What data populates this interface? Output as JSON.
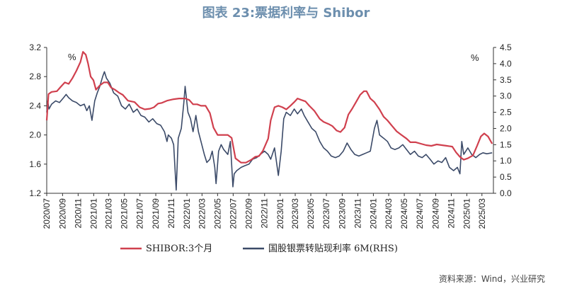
{
  "title": "图表 23:票据利率与 Shibor",
  "source": "资料来源：Wind，兴业研究",
  "chart_data": {
    "type": "line",
    "left_axis": {
      "unit": "%",
      "min": 1.2,
      "max": 3.2,
      "ticks": [
        "1.2",
        "1.6",
        "2.0",
        "2.4",
        "2.8",
        "3.2"
      ]
    },
    "right_axis": {
      "unit": "%",
      "min": 0.0,
      "max": 4.5,
      "ticks": [
        "0.0",
        "0.5",
        "1.0",
        "1.5",
        "2.0",
        "2.5",
        "3.0",
        "3.5",
        "4.0",
        "4.5"
      ]
    },
    "x_range": [
      "2020-07-01",
      "2025-04-15"
    ],
    "x_ticks": [
      "2020/07",
      "2020/09",
      "2020/11",
      "2021/01",
      "2021/03",
      "2021/05",
      "2021/07",
      "2021/09",
      "2021/11",
      "2022/01",
      "2022/03",
      "2022/05",
      "2022/07",
      "2022/09",
      "2022/11",
      "2023/01",
      "2023/03",
      "2023/05",
      "2023/07",
      "2023/09",
      "2023/11",
      "2024/01",
      "2024/03",
      "2024/05",
      "2024/07",
      "2024/09",
      "2024/11",
      "2025/01",
      "2025/03"
    ],
    "series": [
      {
        "name": "SHIBOR:3个月",
        "axis": "left",
        "color": "#d0404e",
        "points": [
          [
            "2020-07-01",
            2.2
          ],
          [
            "2020-07-08",
            2.56
          ],
          [
            "2020-07-20",
            2.59
          ],
          [
            "2020-08-10",
            2.6
          ],
          [
            "2020-08-25",
            2.66
          ],
          [
            "2020-09-10",
            2.72
          ],
          [
            "2020-09-25",
            2.7
          ],
          [
            "2020-10-10",
            2.78
          ],
          [
            "2020-10-25",
            2.88
          ],
          [
            "2020-11-10",
            3.0
          ],
          [
            "2020-11-20",
            3.14
          ],
          [
            "2020-12-01",
            3.1
          ],
          [
            "2020-12-10",
            2.98
          ],
          [
            "2020-12-20",
            2.8
          ],
          [
            "2020-12-31",
            2.75
          ],
          [
            "2021-01-10",
            2.62
          ],
          [
            "2021-01-25",
            2.68
          ],
          [
            "2021-02-10",
            2.72
          ],
          [
            "2021-02-25",
            2.72
          ],
          [
            "2021-03-10",
            2.65
          ],
          [
            "2021-03-25",
            2.62
          ],
          [
            "2021-04-10",
            2.58
          ],
          [
            "2021-04-25",
            2.55
          ],
          [
            "2021-05-15",
            2.47
          ],
          [
            "2021-06-10",
            2.45
          ],
          [
            "2021-06-30",
            2.38
          ],
          [
            "2021-07-20",
            2.35
          ],
          [
            "2021-08-10",
            2.36
          ],
          [
            "2021-08-25",
            2.38
          ],
          [
            "2021-09-10",
            2.43
          ],
          [
            "2021-09-25",
            2.44
          ],
          [
            "2021-10-15",
            2.47
          ],
          [
            "2021-11-10",
            2.49
          ],
          [
            "2021-12-01",
            2.5
          ],
          [
            "2021-12-25",
            2.5
          ],
          [
            "2022-01-10",
            2.48
          ],
          [
            "2022-01-25",
            2.42
          ],
          [
            "2022-02-10",
            2.42
          ],
          [
            "2022-02-25",
            2.4
          ],
          [
            "2022-03-15",
            2.4
          ],
          [
            "2022-04-01",
            2.3
          ],
          [
            "2022-04-15",
            2.1
          ],
          [
            "2022-05-01",
            2.0
          ],
          [
            "2022-05-20",
            2.0
          ],
          [
            "2022-06-10",
            2.0
          ],
          [
            "2022-06-25",
            1.96
          ],
          [
            "2022-07-10",
            1.68
          ],
          [
            "2022-08-01",
            1.62
          ],
          [
            "2022-08-20",
            1.62
          ],
          [
            "2022-09-10",
            1.66
          ],
          [
            "2022-09-25",
            1.7
          ],
          [
            "2022-10-10",
            1.71
          ],
          [
            "2022-10-25",
            1.78
          ],
          [
            "2022-11-15",
            1.95
          ],
          [
            "2022-11-25",
            2.2
          ],
          [
            "2022-12-10",
            2.38
          ],
          [
            "2022-12-25",
            2.4
          ],
          [
            "2023-01-10",
            2.38
          ],
          [
            "2023-01-25",
            2.35
          ],
          [
            "2023-02-10",
            2.4
          ],
          [
            "2023-02-25",
            2.45
          ],
          [
            "2023-03-10",
            2.5
          ],
          [
            "2023-03-25",
            2.48
          ],
          [
            "2023-04-10",
            2.46
          ],
          [
            "2023-04-25",
            2.4
          ],
          [
            "2023-05-15",
            2.33
          ],
          [
            "2023-06-05",
            2.22
          ],
          [
            "2023-06-20",
            2.18
          ],
          [
            "2023-07-10",
            2.15
          ],
          [
            "2023-07-25",
            2.12
          ],
          [
            "2023-08-10",
            2.06
          ],
          [
            "2023-08-25",
            2.04
          ],
          [
            "2023-09-10",
            2.1
          ],
          [
            "2023-09-25",
            2.28
          ],
          [
            "2023-10-10",
            2.36
          ],
          [
            "2023-10-25",
            2.45
          ],
          [
            "2023-11-10",
            2.55
          ],
          [
            "2023-11-25",
            2.6
          ],
          [
            "2023-12-05",
            2.6
          ],
          [
            "2023-12-20",
            2.5
          ],
          [
            "2024-01-05",
            2.45
          ],
          [
            "2024-01-25",
            2.35
          ],
          [
            "2024-02-10",
            2.25
          ],
          [
            "2024-02-25",
            2.2
          ],
          [
            "2024-03-15",
            2.12
          ],
          [
            "2024-04-01",
            2.05
          ],
          [
            "2024-04-20",
            2.0
          ],
          [
            "2024-05-10",
            1.95
          ],
          [
            "2024-05-25",
            1.9
          ],
          [
            "2024-06-15",
            1.9
          ],
          [
            "2024-07-05",
            1.88
          ],
          [
            "2024-07-25",
            1.86
          ],
          [
            "2024-08-15",
            1.85
          ],
          [
            "2024-09-05",
            1.87
          ],
          [
            "2024-09-25",
            1.86
          ],
          [
            "2024-10-15",
            1.85
          ],
          [
            "2024-11-05",
            1.84
          ],
          [
            "2024-11-20",
            1.76
          ],
          [
            "2024-12-05",
            1.7
          ],
          [
            "2024-12-20",
            1.66
          ],
          [
            "2025-01-05",
            1.68
          ],
          [
            "2025-01-25",
            1.72
          ],
          [
            "2025-02-10",
            1.85
          ],
          [
            "2025-02-25",
            1.98
          ],
          [
            "2025-03-10",
            2.02
          ],
          [
            "2025-03-25",
            1.98
          ],
          [
            "2025-04-10",
            1.88
          ]
        ]
      },
      {
        "name": "国股银票转贴现利率 6M(RHS)",
        "axis": "right",
        "color": "#3b4a68",
        "points": [
          [
            "2020-07-01",
            2.5
          ],
          [
            "2020-07-05",
            2.85
          ],
          [
            "2020-07-10",
            2.6
          ],
          [
            "2020-07-20",
            2.75
          ],
          [
            "2020-08-05",
            2.85
          ],
          [
            "2020-08-20",
            2.8
          ],
          [
            "2020-09-05",
            2.95
          ],
          [
            "2020-09-15",
            3.05
          ],
          [
            "2020-09-25",
            2.95
          ],
          [
            "2020-10-10",
            2.85
          ],
          [
            "2020-10-25",
            2.8
          ],
          [
            "2020-11-10",
            2.7
          ],
          [
            "2020-11-25",
            2.75
          ],
          [
            "2020-12-05",
            2.55
          ],
          [
            "2020-12-15",
            2.7
          ],
          [
            "2020-12-25",
            2.25
          ],
          [
            "2021-01-05",
            2.85
          ],
          [
            "2021-01-15",
            3.1
          ],
          [
            "2021-01-25",
            3.3
          ],
          [
            "2021-02-05",
            3.6
          ],
          [
            "2021-02-12",
            3.75
          ],
          [
            "2021-02-20",
            3.55
          ],
          [
            "2021-03-05",
            3.4
          ],
          [
            "2021-03-20",
            3.1
          ],
          [
            "2021-04-05",
            3.0
          ],
          [
            "2021-04-20",
            2.7
          ],
          [
            "2021-05-05",
            2.6
          ],
          [
            "2021-05-20",
            2.75
          ],
          [
            "2021-06-05",
            2.5
          ],
          [
            "2021-06-20",
            2.6
          ],
          [
            "2021-07-05",
            2.4
          ],
          [
            "2021-07-20",
            2.35
          ],
          [
            "2021-08-05",
            2.2
          ],
          [
            "2021-08-20",
            2.3
          ],
          [
            "2021-09-05",
            2.15
          ],
          [
            "2021-09-20",
            2.1
          ],
          [
            "2021-10-05",
            1.9
          ],
          [
            "2021-10-15",
            1.6
          ],
          [
            "2021-10-20",
            1.8
          ],
          [
            "2021-11-01",
            1.7
          ],
          [
            "2021-11-10",
            1.5
          ],
          [
            "2021-11-20",
            0.1
          ],
          [
            "2021-11-28",
            1.7
          ],
          [
            "2021-12-10",
            2.0
          ],
          [
            "2021-12-20",
            2.8
          ],
          [
            "2021-12-25",
            3.3
          ],
          [
            "2022-01-05",
            2.5
          ],
          [
            "2022-01-15",
            2.3
          ],
          [
            "2022-01-25",
            1.9
          ],
          [
            "2022-02-05",
            2.4
          ],
          [
            "2022-02-15",
            1.9
          ],
          [
            "2022-02-25",
            1.6
          ],
          [
            "2022-03-10",
            1.2
          ],
          [
            "2022-03-20",
            0.95
          ],
          [
            "2022-04-01",
            1.05
          ],
          [
            "2022-04-10",
            1.3
          ],
          [
            "2022-04-20",
            0.8
          ],
          [
            "2022-04-25",
            0.3
          ],
          [
            "2022-05-05",
            1.3
          ],
          [
            "2022-05-15",
            1.5
          ],
          [
            "2022-05-25",
            1.35
          ],
          [
            "2022-06-10",
            1.2
          ],
          [
            "2022-06-20",
            1.6
          ],
          [
            "2022-06-30",
            0.2
          ],
          [
            "2022-07-05",
            0.6
          ],
          [
            "2022-07-15",
            0.7
          ],
          [
            "2022-08-01",
            0.8
          ],
          [
            "2022-08-15",
            0.85
          ],
          [
            "2022-09-01",
            0.9
          ],
          [
            "2022-09-15",
            1.05
          ],
          [
            "2022-10-01",
            1.1
          ],
          [
            "2022-10-15",
            1.2
          ],
          [
            "2022-11-01",
            1.3
          ],
          [
            "2022-11-15",
            1.2
          ],
          [
            "2022-11-25",
            1.05
          ],
          [
            "2022-12-10",
            1.4
          ],
          [
            "2022-12-25",
            0.55
          ],
          [
            "2023-01-05",
            1.3
          ],
          [
            "2023-01-15",
            2.3
          ],
          [
            "2023-01-25",
            2.5
          ],
          [
            "2023-02-10",
            2.4
          ],
          [
            "2023-02-25",
            2.6
          ],
          [
            "2023-03-10",
            2.45
          ],
          [
            "2023-03-25",
            2.6
          ],
          [
            "2023-04-05",
            2.4
          ],
          [
            "2023-04-20",
            2.2
          ],
          [
            "2023-05-05",
            2.0
          ],
          [
            "2023-05-20",
            1.9
          ],
          [
            "2023-06-05",
            1.6
          ],
          [
            "2023-06-20",
            1.4
          ],
          [
            "2023-07-05",
            1.3
          ],
          [
            "2023-07-20",
            1.15
          ],
          [
            "2023-08-05",
            1.1
          ],
          [
            "2023-08-20",
            1.15
          ],
          [
            "2023-09-05",
            1.3
          ],
          [
            "2023-09-20",
            1.55
          ],
          [
            "2023-10-05",
            1.35
          ],
          [
            "2023-10-20",
            1.2
          ],
          [
            "2023-11-05",
            1.15
          ],
          [
            "2023-11-20",
            1.2
          ],
          [
            "2023-12-05",
            1.25
          ],
          [
            "2023-12-20",
            1.3
          ],
          [
            "2024-01-05",
            2.0
          ],
          [
            "2024-01-15",
            2.25
          ],
          [
            "2024-01-25",
            1.8
          ],
          [
            "2024-02-10",
            1.7
          ],
          [
            "2024-02-25",
            1.6
          ],
          [
            "2024-03-10",
            1.4
          ],
          [
            "2024-03-25",
            1.35
          ],
          [
            "2024-04-10",
            1.4
          ],
          [
            "2024-04-25",
            1.5
          ],
          [
            "2024-05-10",
            1.35
          ],
          [
            "2024-05-25",
            1.2
          ],
          [
            "2024-06-10",
            1.3
          ],
          [
            "2024-06-25",
            1.15
          ],
          [
            "2024-07-10",
            1.1
          ],
          [
            "2024-07-25",
            1.2
          ],
          [
            "2024-08-10",
            1.05
          ],
          [
            "2024-08-25",
            0.9
          ],
          [
            "2024-09-10",
            1.0
          ],
          [
            "2024-09-25",
            0.95
          ],
          [
            "2024-10-10",
            1.1
          ],
          [
            "2024-10-25",
            0.8
          ],
          [
            "2024-11-10",
            0.7
          ],
          [
            "2024-11-25",
            0.8
          ],
          [
            "2024-12-05",
            0.6
          ],
          [
            "2024-12-12",
            1.6
          ],
          [
            "2024-12-20",
            1.2
          ],
          [
            "2025-01-05",
            1.4
          ],
          [
            "2025-01-20",
            1.2
          ],
          [
            "2025-02-05",
            1.1
          ],
          [
            "2025-02-20",
            1.2
          ],
          [
            "2025-03-05",
            1.25
          ],
          [
            "2025-03-20",
            1.22
          ],
          [
            "2025-04-10",
            1.25
          ]
        ]
      }
    ]
  }
}
